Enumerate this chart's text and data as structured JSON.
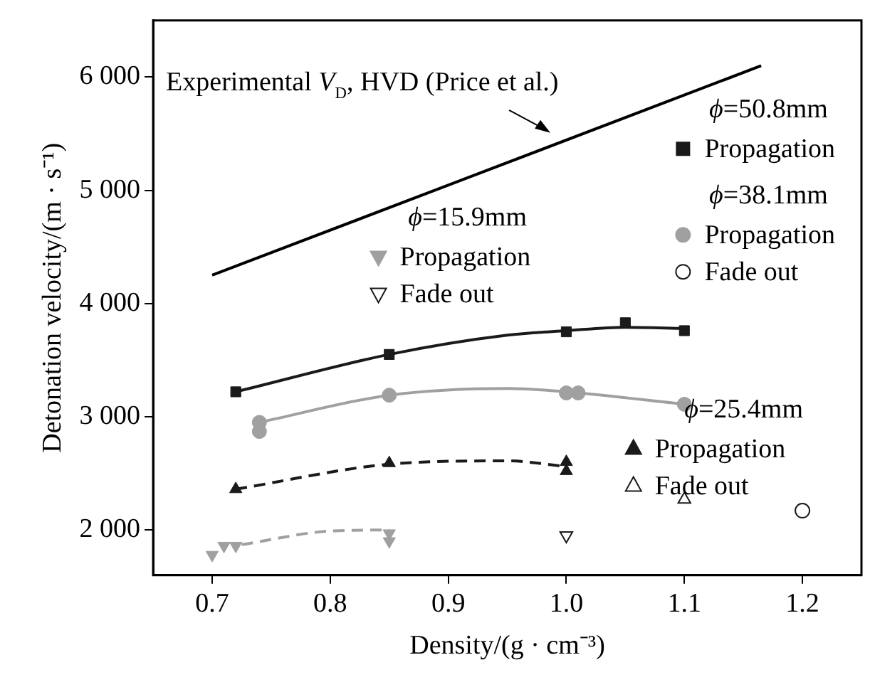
{
  "chart_data": {
    "type": "scatter",
    "xlabel": "Density/(g · cm⁻³)",
    "ylabel": "Detonation velocity/(m · s⁻¹)",
    "xlim": [
      0.65,
      1.25
    ],
    "ylim": [
      1600,
      6500
    ],
    "xticks": [
      0.7,
      0.8,
      0.9,
      {
        "value": 1,
        "label": "1.0"
      },
      1.1,
      1.2
    ],
    "yticks": [
      {
        "value": 2000,
        "label": "2 000"
      },
      {
        "value": 3000,
        "label": "3 000"
      },
      {
        "value": 4000,
        "label": "4 000"
      },
      {
        "value": 5000,
        "label": "5 000"
      },
      {
        "value": 6000,
        "label": "6 000"
      }
    ],
    "grid": false,
    "legend": "right",
    "annotations": [
      "ϕ=50.8mm",
      "ϕ=38.1mm",
      "ϕ=25.4mm",
      "ϕ=15.9mm"
    ],
    "series": [
      {
        "name": "Experimental V$_{D}$, HVD (Price et al.)",
        "type": "line",
        "color": "#000000",
        "marker": "none",
        "line_style": "solid",
        "x": [
          0.7,
          1.165
        ],
        "values": [
          4250,
          6100
        ]
      },
      {
        "name": "Propagation",
        "color": "#1a1a1a",
        "marker": "square",
        "x": [
          0.72,
          0.85,
          1.0,
          1.05,
          1.1
        ],
        "values": [
          3220,
          3550,
          3750,
          3830,
          3760
        ]
      },
      {
        "type": "line",
        "color": "#1a1a1a",
        "marker": "none",
        "line_style": "solid",
        "x": [
          0.72,
          0.85,
          0.95,
          1.0,
          1.05,
          1.1
        ],
        "values": [
          3220,
          3550,
          3720,
          3760,
          3790,
          3780
        ]
      },
      {
        "name": "Propagation",
        "color": "#a0a0a0",
        "marker": "circle",
        "x": [
          0.74,
          0.74,
          0.85,
          1.0,
          1.01,
          1.1
        ],
        "values": [
          2950,
          2870,
          3190,
          3210,
          3210,
          3110
        ]
      },
      {
        "name": "Fade out",
        "color": "#1a1a1a",
        "marker": "circle_open",
        "x": [
          1.2
        ],
        "values": [
          2170
        ]
      },
      {
        "type": "line",
        "color": "#a0a0a0",
        "marker": "none",
        "line_style": "solid",
        "x": [
          0.74,
          0.85,
          0.95,
          1.0,
          1.1
        ],
        "values": [
          2950,
          3190,
          3250,
          3220,
          3110
        ]
      },
      {
        "name": "Propagation",
        "color": "#1a1a1a",
        "marker": "triangle",
        "x": [
          0.72,
          0.85,
          1.0,
          1.0
        ],
        "values": [
          2360,
          2590,
          2600,
          2520
        ]
      },
      {
        "name": "Fade out",
        "color": "#1a1a1a",
        "marker": "triangle_open",
        "x": [
          1.1
        ],
        "values": [
          2270
        ]
      },
      {
        "type": "line",
        "color": "#1a1a1a",
        "marker": "none",
        "line_style": "dashed",
        "x": [
          0.72,
          0.85,
          0.95,
          1.0
        ],
        "values": [
          2360,
          2580,
          2610,
          2560
        ]
      },
      {
        "name": "Propagation",
        "color": "#a0a0a0",
        "marker": "triangle_down",
        "x": [
          0.7,
          0.71,
          0.72,
          0.85,
          0.85
        ],
        "values": [
          1780,
          1860,
          1860,
          1970,
          1900
        ]
      },
      {
        "name": "Fade out",
        "color": "#1a1a1a",
        "marker": "triangle_down_open",
        "x": [
          1.0
        ],
        "values": [
          1950
        ]
      },
      {
        "type": "line",
        "color": "#a0a0a0",
        "marker": "none",
        "line_style": "dashed",
        "x": [
          0.725,
          0.8,
          0.85
        ],
        "values": [
          1870,
          1990,
          2000
        ]
      }
    ]
  }
}
